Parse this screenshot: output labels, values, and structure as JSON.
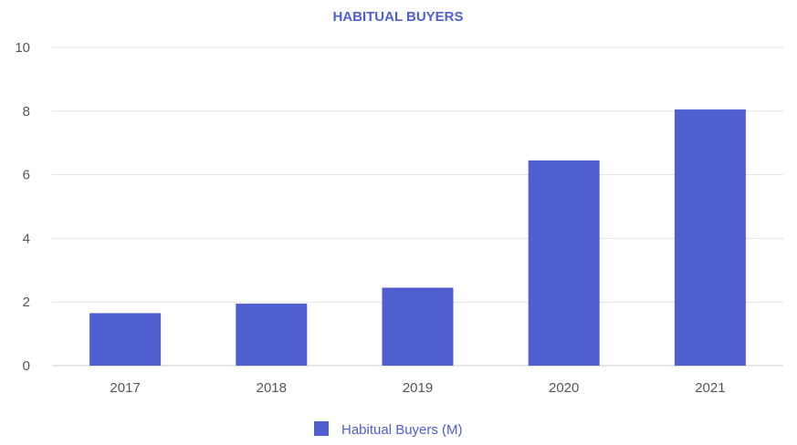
{
  "chart_data": {
    "type": "bar",
    "title": "HABITUAL BUYERS",
    "xlabel": "",
    "ylabel": "",
    "categories": [
      "2017",
      "2018",
      "2019",
      "2020",
      "2021"
    ],
    "series": [
      {
        "name": "Habitual Buyers (M)",
        "values": [
          1.65,
          1.95,
          2.45,
          6.45,
          8.05
        ]
      }
    ],
    "ylim": [
      0,
      10
    ],
    "yticks": [
      "0",
      "2",
      "4",
      "6",
      "8",
      "10"
    ],
    "grid": true,
    "legend_position": "bottom-center",
    "colors": {
      "bar": "#4F5FCF",
      "title": "#4F5FCF",
      "grid": "#E3E3E3",
      "axis_text": "#555555"
    }
  }
}
